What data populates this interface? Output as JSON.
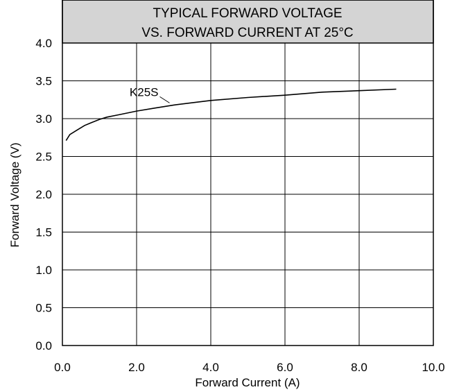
{
  "chart_data": {
    "type": "line",
    "title_lines": [
      "TYPICAL FORWARD VOLTAGE",
      "VS. FORWARD CURRENT AT 25°C"
    ],
    "xlabel": "Forward Current (A)",
    "ylabel": "Forward Voltage (V)",
    "xlim": [
      0,
      10
    ],
    "ylim": [
      0,
      4
    ],
    "x_ticks": [
      0,
      2,
      4,
      6,
      8,
      10
    ],
    "x_tick_labels": [
      "0.0",
      "2.0",
      "4.0",
      "6.0",
      "8.0",
      "10.0"
    ],
    "y_ticks": [
      0,
      0.5,
      1.0,
      1.5,
      2.0,
      2.5,
      3.0,
      3.5,
      4.0
    ],
    "y_tick_labels": [
      "0.0",
      "0.5",
      "1.0",
      "1.5",
      "2.0",
      "2.5",
      "3.0",
      "3.5",
      "4.0"
    ],
    "grid": true,
    "title_box_color": "#d4d4d4",
    "series": [
      {
        "name": "K25S",
        "color": "#000000",
        "x": [
          0.1,
          0.2,
          0.4,
          0.6,
          0.8,
          1.0,
          1.2,
          1.5,
          2.0,
          2.5,
          3.0,
          3.5,
          4.0,
          5.0,
          6.0,
          7.0,
          8.0,
          9.0
        ],
        "y": [
          2.71,
          2.79,
          2.85,
          2.91,
          2.95,
          2.99,
          3.02,
          3.05,
          3.1,
          3.14,
          3.18,
          3.21,
          3.24,
          3.28,
          3.31,
          3.35,
          3.37,
          3.39
        ]
      }
    ]
  }
}
